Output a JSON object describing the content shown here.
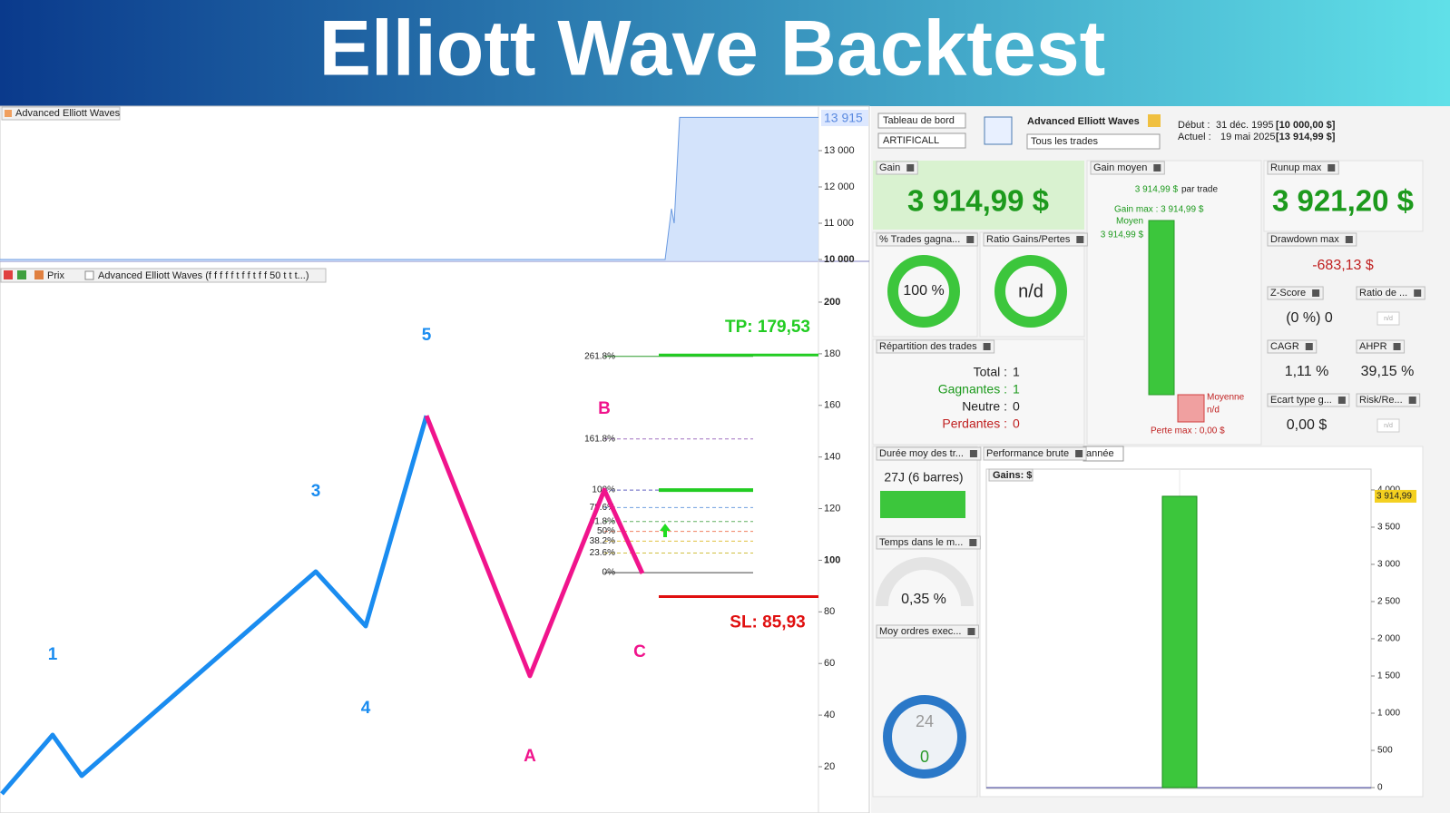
{
  "header": {
    "title": "Elliott Wave Backtest"
  },
  "equity_panel": {
    "legend": "Advanced Elliott Waves",
    "last_label": "13 915",
    "ylim": [
      9950,
      14200
    ],
    "yticks": [
      {
        "value": 10000,
        "label": "10 000"
      },
      {
        "value": 11000,
        "label": "11 000"
      },
      {
        "value": 12000,
        "label": "12 000"
      },
      {
        "value": 13000,
        "label": "13 000"
      }
    ],
    "values": [
      10000,
      10000,
      11400,
      11000,
      13915,
      13915
    ]
  },
  "price_panel": {
    "toolbar": {
      "price": "Prix",
      "indicator": "Advanced Elliott Waves (f f f f f t f f t f f 50 t t t...)"
    },
    "ylim": [
      8.4,
      213
    ],
    "yticks": [
      20,
      40,
      60,
      80,
      100,
      120,
      140,
      160,
      180,
      200
    ],
    "impulse": [
      9.5,
      32.3,
      16.5,
      95.6,
      74.5,
      156
    ],
    "correction": [
      156,
      55.2,
      127.2,
      94.9
    ],
    "wave_labels": [
      "1",
      "3",
      "4",
      "5",
      "A",
      "B",
      "C"
    ],
    "fib": [
      {
        "label": "261.8%",
        "value": 179
      },
      {
        "label": "161.8%",
        "value": 147
      },
      {
        "label": "100%",
        "value": 127.2
      },
      {
        "label": "78.6%",
        "value": 120.4
      },
      {
        "label": "61.8%",
        "value": 115
      },
      {
        "label": "50%",
        "value": 111.2
      },
      {
        "label": "38.2%",
        "value": 107.4
      },
      {
        "label": "23.6%",
        "value": 102.8
      },
      {
        "label": "0%",
        "value": 95.2
      }
    ],
    "tp": {
      "label": "TP: 179,53",
      "value": 179.53
    },
    "sl": {
      "label": "SL: 85,93",
      "value": 85.93
    }
  },
  "dashboard": {
    "view": "Tableau de bord",
    "symbol": "ARTIFICALL",
    "strategy": "Advanced Elliott Waves",
    "filter": "Tous les trades",
    "start_label": "Début :",
    "start_date": "31 déc. 1995",
    "start_capital": "[10 000,00 $]",
    "now_label": "Actuel :",
    "now_date": "19 mai 2025",
    "now_capital": "[13 914,99 $]",
    "gain": {
      "title": "Gain",
      "value": "3 914,99 $"
    },
    "avg_gain": {
      "title": "Gain moyen",
      "value": "3 914,99 $",
      "unit": "par trade",
      "max": "Gain max : 3 914,99 $",
      "avg_label": "Moyen",
      "avg_value": "3 914,99 $",
      "loss_avg_label": "Moyenne",
      "loss_avg_value": "n/d",
      "loss_max": "Perte max : 0,00 $"
    },
    "runup": {
      "title": "Runup max",
      "value": "3 921,20 $"
    },
    "win_rate": {
      "title": "% Trades gagna...",
      "value": "100 %"
    },
    "ratio": {
      "title": "Ratio Gains/Pertes",
      "value": "n/d"
    },
    "drawdown": {
      "title": "Drawdown max",
      "value": "-683,13 $"
    },
    "zscore": {
      "title": "Z-Score",
      "value": "(0 %) 0"
    },
    "ratio_de": {
      "title": "Ratio de ...",
      "value": "n/d"
    },
    "split": {
      "title": "Répartition des trades",
      "rows": [
        [
          "Total :",
          "1"
        ],
        [
          "Gagnantes :",
          "1"
        ],
        [
          "Neutre :",
          "0"
        ],
        [
          "Perdantes :",
          "0"
        ]
      ]
    },
    "cagr": {
      "title": "CAGR",
      "value": "1,11 %"
    },
    "ahpr": {
      "title": "AHPR",
      "value": "39,15 %"
    },
    "stdev": {
      "title": "Ecart type g...",
      "value": "0,00 $"
    },
    "risk": {
      "title": "Risk/Re...",
      "value": "n/d"
    },
    "duration": {
      "title": "Durée moy des tr...",
      "value": "27J (6 barres)"
    },
    "exposure": {
      "title": "Temps dans le m...",
      "value": "0,35 %"
    },
    "orders": {
      "title": "Moy ordres exec...",
      "clock_top": "24",
      "clock_mid": "0"
    },
    "perf": {
      "title": "Performance brute",
      "period": "année",
      "axis_title": "Gains: $",
      "ylim": [
        0,
        4280
      ],
      "yticks": [
        {
          "value": 0,
          "label": "0"
        },
        {
          "value": 500,
          "label": "500"
        },
        {
          "value": 1000,
          "label": "1 000"
        },
        {
          "value": 1500,
          "label": "1 500"
        },
        {
          "value": 2000,
          "label": "2 000"
        },
        {
          "value": 2500,
          "label": "2 500"
        },
        {
          "value": 3000,
          "label": "3 000"
        },
        {
          "value": 3500,
          "label": "3 500"
        },
        {
          "value": 4000,
          "label": "4 000"
        }
      ],
      "values": [
        3914.99
      ],
      "value_labels": [
        "3 914,99"
      ]
    }
  }
}
